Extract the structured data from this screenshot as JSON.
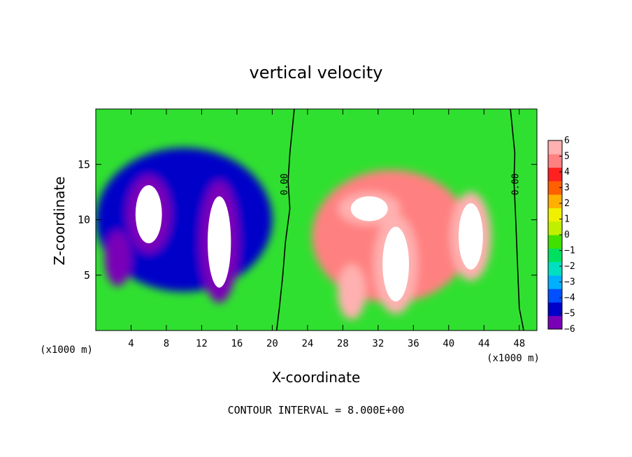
{
  "chart_data": {
    "type": "heatmap",
    "title": "vertical velocity",
    "xlabel": "X-coordinate",
    "ylabel": "Z-coordinate",
    "x_unit_label": "(x1000 m)",
    "x_unit_label_right": "(x1000 m)",
    "footer": "CONTOUR INTERVAL = 8.000E+00",
    "xlim": [
      0,
      50
    ],
    "ylim": [
      0,
      20
    ],
    "xticks": [
      4,
      8,
      12,
      16,
      20,
      24,
      28,
      32,
      36,
      40,
      44,
      48
    ],
    "xtick_labels": [
      "4",
      "8",
      "12",
      "16",
      "20",
      "24",
      "28",
      "32",
      "36",
      "40",
      "44",
      "48"
    ],
    "yticks": [
      5,
      10,
      15
    ],
    "ytick_labels": [
      "5",
      "10",
      "15"
    ],
    "colorbar": {
      "range": [
        -6,
        6
      ],
      "ticks": [
        6,
        5,
        4,
        3,
        2,
        1,
        0,
        -1,
        -2,
        -3,
        -4,
        -5,
        -6
      ],
      "tick_labels": [
        "6",
        "5",
        "4",
        "3",
        "2",
        "1",
        "0",
        "−1",
        "−2",
        "−3",
        "−4",
        "−5",
        "−6"
      ],
      "colors": [
        "#7a00b8",
        "#0000c8",
        "#0050ff",
        "#00b0ff",
        "#00e0c0",
        "#00e060",
        "#40e000",
        "#c0f000",
        "#f0f000",
        "#ffb000",
        "#ff6000",
        "#ff2020",
        "#ff8080",
        "#ffb0b0"
      ]
    },
    "contour_labels": [
      {
        "text": "0.00",
        "x": 21.4,
        "z": 13.2
      },
      {
        "text": "0.00",
        "x": 47.6,
        "z": 13.2
      }
    ],
    "zero_contour_lines": [
      [
        [
          22.5,
          20
        ],
        [
          22.0,
          16
        ],
        [
          21.8,
          13.5
        ],
        [
          22.0,
          11
        ],
        [
          21.5,
          8
        ],
        [
          21.2,
          5
        ],
        [
          20.8,
          2
        ],
        [
          20.5,
          0
        ]
      ],
      [
        [
          47.0,
          20
        ],
        [
          47.5,
          16
        ],
        [
          47.4,
          13.5
        ],
        [
          47.6,
          10
        ],
        [
          47.8,
          6
        ],
        [
          48.0,
          2
        ],
        [
          48.5,
          0
        ]
      ]
    ],
    "updraft_blobs": [
      {
        "cx": 33.5,
        "cz": 8.5,
        "rx": 9.0,
        "rz": 6.0,
        "value": 5
      },
      {
        "cx": 31.0,
        "cz": 11.0,
        "rx": 3.5,
        "rz": 1.5,
        "value": 6
      },
      {
        "cx": 34.0,
        "cz": 6.0,
        "rx": 2.5,
        "rz": 4.5,
        "value": 6
      },
      {
        "cx": 42.5,
        "cz": 8.5,
        "rx": 2.3,
        "rz": 4.0,
        "value": 6
      },
      {
        "cx": 29.0,
        "cz": 3.5,
        "rx": 1.6,
        "rz": 2.5,
        "value": 6
      }
    ],
    "downdraft_blobs": [
      {
        "cx": 10.0,
        "cz": 10.0,
        "rx": 10.0,
        "rz": 6.5,
        "value": -5
      },
      {
        "cx": 6.0,
        "cz": 10.5,
        "rx": 2.5,
        "rz": 3.5,
        "value": -6
      },
      {
        "cx": 14.0,
        "cz": 8.0,
        "rx": 2.2,
        "rz": 5.5,
        "value": -6
      },
      {
        "cx": 2.5,
        "cz": 6.5,
        "rx": 1.5,
        "rz": 2.5,
        "value": -6
      }
    ]
  }
}
